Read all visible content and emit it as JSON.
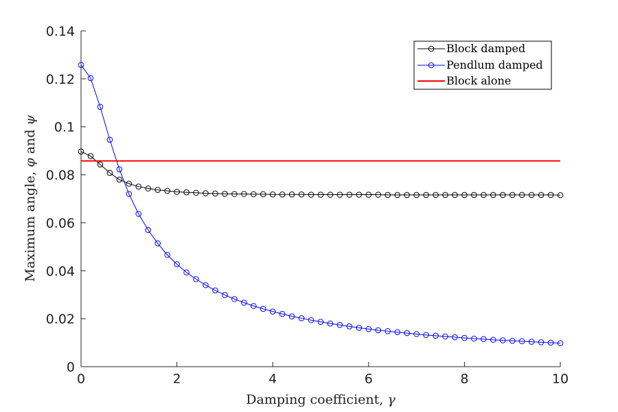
{
  "chart_data": {
    "type": "line",
    "xlabel_prefix": "Damping coefficient, ",
    "xlabel_symbol": "γ",
    "ylabel_prefix": "Maximum angle, ",
    "ylabel_phi": "φ",
    "ylabel_and": " and ",
    "ylabel_psi": "ψ",
    "xlim": [
      0,
      10
    ],
    "ylim": [
      0,
      0.14
    ],
    "xticks": [
      0,
      2,
      4,
      6,
      8,
      10
    ],
    "xtick_labels": [
      "0",
      "2",
      "4",
      "6",
      "8",
      "10"
    ],
    "yticks": [
      0,
      0.02,
      0.04,
      0.06,
      0.08,
      0.1,
      0.12,
      0.14
    ],
    "ytick_labels": [
      "0",
      "0.02",
      "0.04",
      "0.06",
      "0.08",
      "0.1",
      "0.12",
      "0.14"
    ],
    "grid": false,
    "legend_position": "top-right",
    "x": [
      0,
      0.2,
      0.4,
      0.6,
      0.8,
      1.0,
      1.2,
      1.4,
      1.6,
      1.8,
      2.0,
      2.2,
      2.4,
      2.6,
      2.8,
      3.0,
      3.2,
      3.4,
      3.6,
      3.8,
      4.0,
      4.2,
      4.4,
      4.6,
      4.8,
      5.0,
      5.2,
      5.4,
      5.6,
      5.8,
      6.0,
      6.2,
      6.4,
      6.6,
      6.8,
      7.0,
      7.2,
      7.4,
      7.6,
      7.8,
      8.0,
      8.2,
      8.4,
      8.6,
      8.8,
      9.0,
      9.2,
      9.4,
      9.6,
      9.8,
      10.0
    ],
    "series": [
      {
        "name": "Block damped",
        "color": "#000000",
        "marker": "circle",
        "values": [
          0.0897,
          0.0878,
          0.0843,
          0.0808,
          0.078,
          0.0763,
          0.0751,
          0.0743,
          0.0737,
          0.0733,
          0.0729,
          0.0727,
          0.0725,
          0.0723,
          0.0722,
          0.0721,
          0.072,
          0.072,
          0.0719,
          0.0719,
          0.0718,
          0.0718,
          0.0718,
          0.0718,
          0.0717,
          0.0717,
          0.0717,
          0.0717,
          0.0717,
          0.0717,
          0.0717,
          0.0717,
          0.0716,
          0.0716,
          0.0716,
          0.0716,
          0.0716,
          0.0716,
          0.0716,
          0.0716,
          0.0716,
          0.0716,
          0.0716,
          0.0716,
          0.0716,
          0.0716,
          0.0716,
          0.0716,
          0.0716,
          0.0716,
          0.0715
        ]
      },
      {
        "name": "Pendlum damped",
        "color": "#0000ff",
        "marker": "circle",
        "values": [
          0.1258,
          0.1203,
          0.1083,
          0.0946,
          0.0823,
          0.072,
          0.0637,
          0.057,
          0.0514,
          0.0466,
          0.0427,
          0.0393,
          0.0365,
          0.034,
          0.0318,
          0.0299,
          0.0282,
          0.0267,
          0.0253,
          0.0241,
          0.023,
          0.022,
          0.021,
          0.0202,
          0.0194,
          0.0187,
          0.018,
          0.0174,
          0.0168,
          0.0162,
          0.0157,
          0.0152,
          0.0148,
          0.0144,
          0.014,
          0.0136,
          0.0132,
          0.0129,
          0.0126,
          0.0123,
          0.012,
          0.0117,
          0.0115,
          0.0112,
          0.011,
          0.0108,
          0.0106,
          0.0104,
          0.0102,
          0.01,
          0.0098
        ]
      },
      {
        "name": "Block alone",
        "color": "#ff0000",
        "marker": "none",
        "constant": 0.0858
      }
    ]
  }
}
